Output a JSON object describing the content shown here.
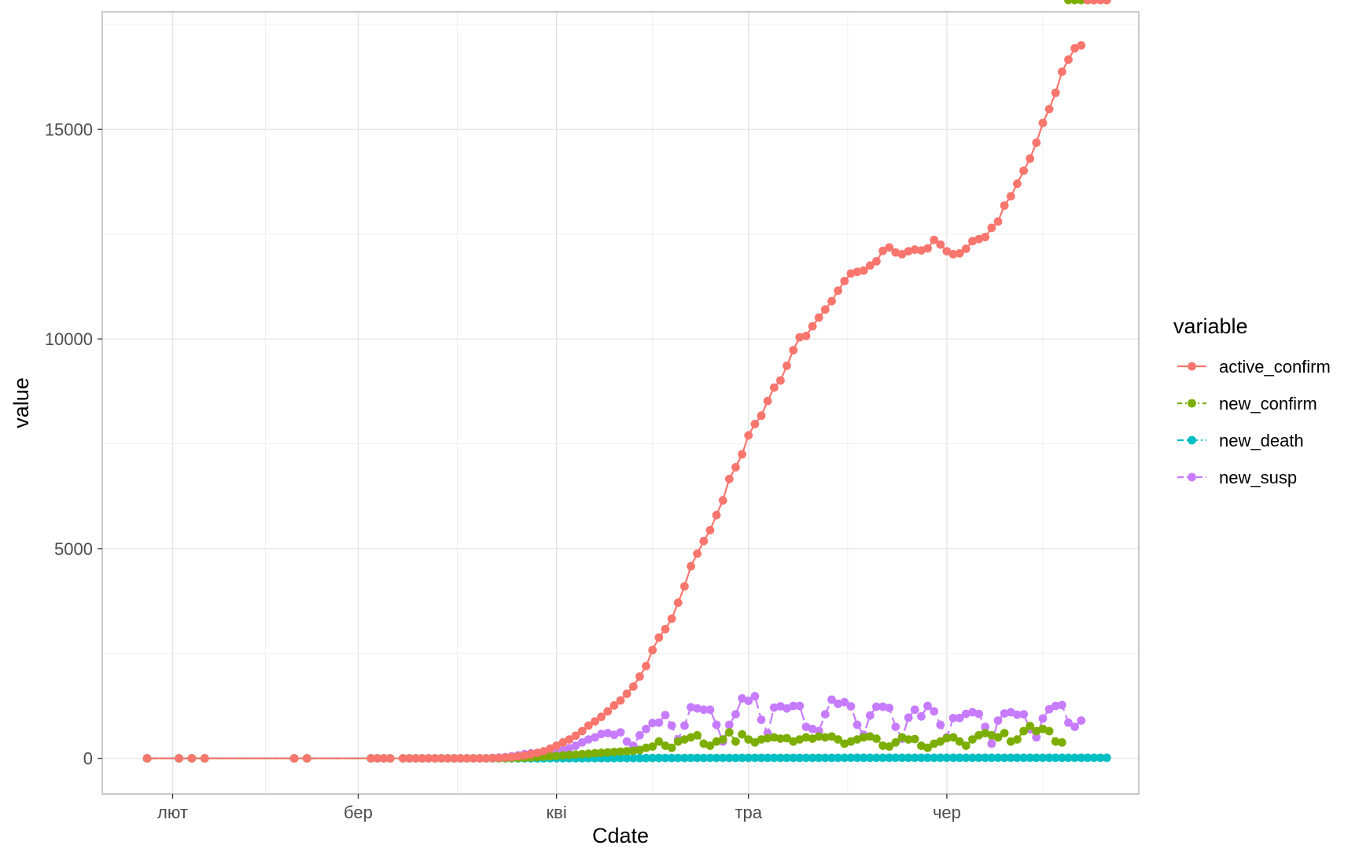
{
  "chart_data": {
    "type": "line",
    "xlabel": "Cdate",
    "ylabel": "value",
    "x_tick_labels": [
      "лют",
      "бер",
      "кві",
      "тра",
      "чер"
    ],
    "y_tick_labels": [
      "0",
      "5000",
      "10000",
      "15000"
    ],
    "ylim": [
      -850,
      17800
    ],
    "xlim_day_index": [
      -11,
      151
    ],
    "grid": true,
    "legend": {
      "title": "variable",
      "position": "right"
    },
    "series_styles": [
      {
        "name": "active_confirm",
        "color": "#F8766D",
        "dash": ""
      },
      {
        "name": "new_confirm",
        "color": "#7CAE00",
        "dash": "6,4,2,4"
      },
      {
        "name": "new_death",
        "color": "#00BFC4",
        "dash": "14,6,3,6"
      },
      {
        "name": "new_susp",
        "color": "#C77CFF",
        "dash": "14,6"
      }
    ],
    "series": [
      {
        "name": "active_confirm",
        "x_day_index": [
          -4,
          1,
          3,
          5,
          19,
          21,
          31,
          32,
          33,
          34,
          36,
          37,
          38,
          39,
          40,
          41,
          42,
          43,
          44,
          45,
          46,
          47,
          48,
          49,
          50,
          51,
          52,
          53,
          54,
          55,
          56,
          57,
          58,
          59,
          60,
          61,
          62,
          63,
          64,
          65,
          66,
          67,
          68,
          69,
          70,
          71,
          72,
          73,
          74,
          75,
          76,
          77,
          78,
          79,
          80,
          81,
          82,
          83,
          84,
          85,
          86,
          87,
          88,
          89,
          90,
          91,
          92,
          93,
          94,
          95,
          96,
          97,
          98,
          99,
          100,
          101,
          102,
          103,
          104,
          105,
          106,
          107,
          108,
          109,
          110,
          111,
          112,
          113,
          114,
          115,
          116,
          117,
          118,
          119,
          120,
          121,
          122,
          123,
          124,
          125,
          126,
          127,
          128,
          129,
          130,
          131,
          132,
          133,
          134,
          135,
          136,
          137,
          138,
          139,
          140,
          141,
          142,
          143,
          144,
          145,
          146
        ],
        "y": [
          0,
          0,
          0,
          0,
          0,
          0,
          0,
          0,
          0,
          0,
          0,
          0,
          0,
          0,
          0,
          0,
          0,
          0,
          0,
          0,
          0,
          0,
          0,
          0,
          5,
          10,
          20,
          30,
          50,
          70,
          100,
          130,
          170,
          230,
          300,
          380,
          450,
          540,
          650,
          780,
          880,
          990,
          1120,
          1260,
          1380,
          1540,
          1710,
          1950,
          2200,
          2580,
          2880,
          3080,
          3330,
          3710,
          4100,
          4580,
          4880,
          5180,
          5440,
          5800,
          6150,
          6660,
          6940,
          7250,
          7700,
          7970,
          8170,
          8520,
          8840,
          9010,
          9360,
          9730,
          10040,
          10070,
          10300,
          10510,
          10700,
          10900,
          11150,
          11380,
          11560,
          11600,
          11630,
          11750,
          11850,
          12100,
          12180,
          12060,
          12020,
          12090,
          12130,
          12110,
          12160,
          12360,
          12250,
          12090,
          12020,
          12040,
          12150,
          12330,
          12380,
          12430,
          12650,
          12800,
          13180,
          13400,
          13700,
          14010,
          14300,
          14680,
          15150,
          15480,
          15870,
          16370,
          16660,
          16930,
          17000
        ]
      },
      {
        "name": "new_confirm",
        "x_day_index": [
          -4,
          1,
          3,
          5,
          19,
          21,
          31,
          32,
          33,
          34,
          36,
          37,
          38,
          39,
          40,
          41,
          42,
          43,
          44,
          45,
          46,
          47,
          48,
          49,
          50,
          51,
          52,
          53,
          54,
          55,
          56,
          57,
          58,
          59,
          60,
          61,
          62,
          63,
          64,
          65,
          66,
          67,
          68,
          69,
          70,
          71,
          72,
          73,
          74,
          75,
          76,
          77,
          78,
          79,
          80,
          81,
          82,
          83,
          84,
          85,
          86,
          87,
          88,
          89,
          90,
          91,
          92,
          93,
          94,
          95,
          96,
          97,
          98,
          99,
          100,
          101,
          102,
          103,
          104,
          105,
          106,
          107,
          108,
          109,
          110,
          111,
          112,
          113,
          114,
          115,
          116,
          117,
          118,
          119,
          120,
          121,
          122,
          123,
          124,
          125,
          126,
          127,
          128,
          129,
          130,
          131,
          132,
          133,
          134,
          135,
          136,
          137,
          138,
          139,
          140,
          141,
          142,
          143,
          144,
          145,
          146
        ],
        "y": [
          0,
          0,
          0,
          0,
          0,
          0,
          0,
          0,
          0,
          0,
          0,
          0,
          0,
          0,
          0,
          0,
          0,
          0,
          0,
          0,
          0,
          0,
          0,
          0,
          2,
          3,
          5,
          5,
          10,
          15,
          20,
          30,
          40,
          50,
          60,
          70,
          80,
          90,
          100,
          110,
          120,
          130,
          140,
          150,
          160,
          170,
          180,
          200,
          250,
          280,
          400,
          300,
          250,
          400,
          450,
          500,
          550,
          350,
          300,
          400,
          450,
          620,
          400,
          570,
          450,
          380,
          450,
          480,
          500,
          470,
          480,
          400,
          450,
          500,
          470,
          520,
          500,
          520,
          450,
          350,
          400,
          450,
          500,
          520,
          470,
          300,
          280,
          380,
          500,
          450,
          460,
          300,
          250,
          350,
          400,
          480,
          500,
          400,
          300,
          450,
          550,
          600,
          550,
          500,
          600,
          400,
          450,
          650,
          770,
          650,
          700,
          650,
          400,
          380
        ]
      },
      {
        "name": "new_death",
        "x_day_index": [
          -4,
          1,
          3,
          5,
          19,
          21,
          31,
          32,
          33,
          34,
          36,
          37,
          38,
          39,
          40,
          41,
          42,
          43,
          44,
          45,
          46,
          47,
          48,
          49,
          50,
          51,
          52,
          53,
          54,
          55,
          56,
          57,
          58,
          59,
          60,
          61,
          62,
          63,
          64,
          65,
          66,
          67,
          68,
          69,
          70,
          71,
          72,
          73,
          74,
          75,
          76,
          77,
          78,
          79,
          80,
          81,
          82,
          83,
          84,
          85,
          86,
          87,
          88,
          89,
          90,
          91,
          92,
          93,
          94,
          95,
          96,
          97,
          98,
          99,
          100,
          101,
          102,
          103,
          104,
          105,
          106,
          107,
          108,
          109,
          110,
          111,
          112,
          113,
          114,
          115,
          116,
          117,
          118,
          119,
          120,
          121,
          122,
          123,
          124,
          125,
          126,
          127,
          128,
          129,
          130,
          131,
          132,
          133,
          134,
          135,
          136,
          137,
          138,
          139,
          140,
          141,
          142,
          143,
          144,
          145,
          146
        ],
        "y": [
          0,
          0,
          0,
          0,
          0,
          0,
          0,
          0,
          0,
          0,
          0,
          0,
          0,
          0,
          0,
          0,
          0,
          0,
          0,
          0,
          0,
          0,
          0,
          0,
          0,
          0,
          0,
          0,
          0,
          0,
          0,
          0,
          0,
          1,
          1,
          2,
          2,
          3,
          3,
          4,
          4,
          5,
          5,
          5,
          6,
          6,
          7,
          7,
          7,
          8,
          8,
          8,
          9,
          9,
          9,
          10,
          10,
          10,
          10,
          11,
          11,
          11,
          11,
          12,
          12,
          12,
          12,
          12,
          12,
          13,
          13,
          13,
          13,
          13,
          13,
          13,
          13,
          13,
          13,
          14,
          14,
          14,
          14,
          14,
          14,
          14,
          14,
          14,
          14,
          14,
          14,
          14,
          14,
          14,
          14,
          14,
          14,
          14,
          14,
          14,
          14,
          14,
          14,
          14,
          14,
          14,
          14,
          14,
          14,
          14,
          14,
          14,
          14,
          14,
          14,
          14,
          14,
          14,
          14,
          14,
          14
        ]
      },
      {
        "name": "new_susp",
        "x_day_index": [
          -4,
          1,
          3,
          5,
          19,
          21,
          31,
          32,
          33,
          34,
          36,
          37,
          38,
          39,
          40,
          41,
          42,
          43,
          44,
          45,
          46,
          47,
          48,
          49,
          50,
          51,
          52,
          53,
          54,
          55,
          56,
          57,
          58,
          59,
          60,
          61,
          62,
          63,
          64,
          65,
          66,
          67,
          68,
          69,
          70,
          71,
          72,
          73,
          74,
          75,
          76,
          77,
          78,
          79,
          80,
          81,
          82,
          83,
          84,
          85,
          86,
          87,
          88,
          89,
          90,
          91,
          92,
          93,
          94,
          95,
          96,
          97,
          98,
          99,
          100,
          101,
          102,
          103,
          104,
          105,
          106,
          107,
          108,
          109,
          110,
          111,
          112,
          113,
          114,
          115,
          116,
          117,
          118,
          119,
          120,
          121,
          122,
          123,
          124,
          125,
          126,
          127,
          128,
          129,
          130,
          131,
          132,
          133,
          134,
          135,
          136,
          137,
          138,
          139,
          140,
          141,
          142,
          143,
          144,
          145,
          146
        ],
        "y": [
          0,
          0,
          0,
          0,
          0,
          0,
          0,
          0,
          0,
          0,
          0,
          0,
          0,
          0,
          0,
          0,
          0,
          0,
          0,
          0,
          0,
          0,
          0,
          0,
          10,
          20,
          30,
          50,
          70,
          100,
          120,
          110,
          90,
          110,
          160,
          190,
          240,
          300,
          380,
          450,
          500,
          580,
          600,
          560,
          620,
          400,
          300,
          550,
          700,
          840,
          850,
          1030,
          780,
          450,
          780,
          1220,
          1190,
          1160,
          1160,
          800,
          400,
          800,
          1050,
          1430,
          1370,
          1480,
          920,
          600,
          1210,
          1240,
          1190,
          1250,
          1250,
          750,
          700,
          650,
          1050,
          1400,
          1300,
          1340,
          1240,
          800,
          560,
          1020,
          1230,
          1230,
          1200,
          750,
          470,
          970,
          1160,
          1000,
          1250,
          1120,
          800,
          500,
          960,
          960,
          1060,
          1100,
          1060,
          750,
          350,
          900,
          1070,
          1100,
          1040,
          1050,
          690,
          500,
          950,
          1170,
          1250,
          1270,
          850,
          750,
          900
        ]
      }
    ]
  }
}
